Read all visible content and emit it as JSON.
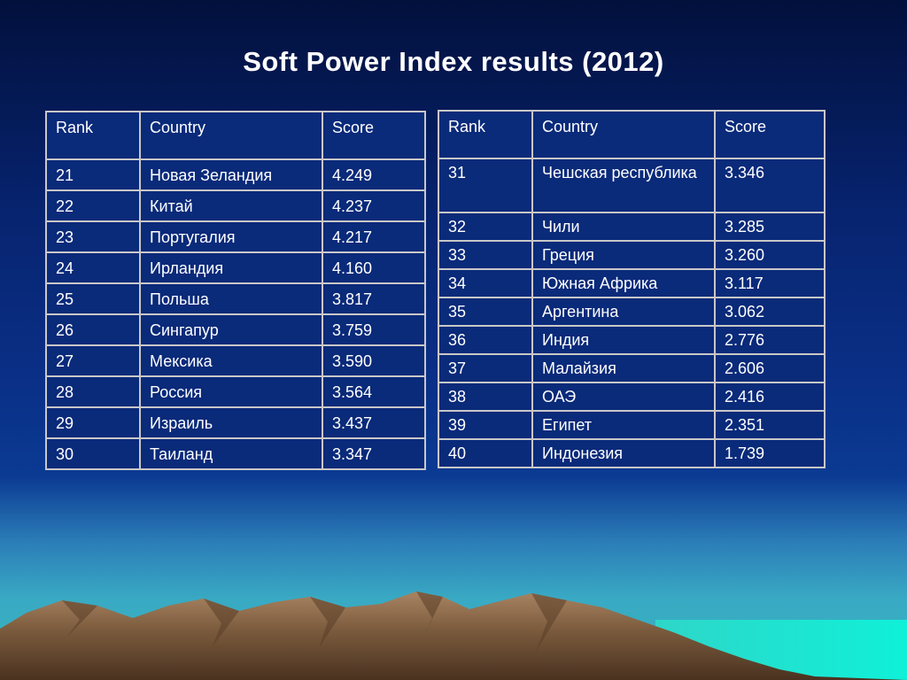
{
  "title": "Soft Power Index results (2012)",
  "colors": {
    "sky_top": "#02103c",
    "sky_mid": "#0a2f86",
    "sea": "#37b7be",
    "text": "#ffffff",
    "table_border": "#c8c8c8",
    "mountain": "#7a5a3c"
  },
  "tables": {
    "left": {
      "headers": [
        "Rank",
        "Country",
        "Score"
      ],
      "rows": [
        [
          "21",
          "Новая Зеландия",
          "4.249"
        ],
        [
          "22",
          "Китай",
          "4.237"
        ],
        [
          "23",
          "Португалия",
          "4.217"
        ],
        [
          "24",
          "Ирландия",
          "4.160"
        ],
        [
          "25",
          "Польша",
          "3.817"
        ],
        [
          "26",
          "Сингапур",
          "3.759"
        ],
        [
          "27",
          "Мексика",
          "3.590"
        ],
        [
          "28",
          "Россия",
          "3.564"
        ],
        [
          "29",
          "Израиль",
          "3.437"
        ],
        [
          "30",
          "Таиланд",
          "3.347"
        ]
      ]
    },
    "right": {
      "headers": [
        "Rank",
        "Country",
        "Score"
      ],
      "rows": [
        [
          "31",
          "Чешская республика",
          "3.346"
        ],
        [
          "32",
          "Чили",
          "3.285"
        ],
        [
          "33",
          "Греция",
          "3.260"
        ],
        [
          "34",
          "Южная Африка",
          "3.117"
        ],
        [
          "35",
          "Аргентина",
          "3.062"
        ],
        [
          "36",
          "Индия",
          "2.776"
        ],
        [
          "37",
          "Малайзия",
          "2.606"
        ],
        [
          "38",
          "ОАЭ",
          "2.416"
        ],
        [
          "39",
          "Египет",
          "2.351"
        ],
        [
          "40",
          "Индонезия",
          "1.739"
        ]
      ]
    }
  }
}
